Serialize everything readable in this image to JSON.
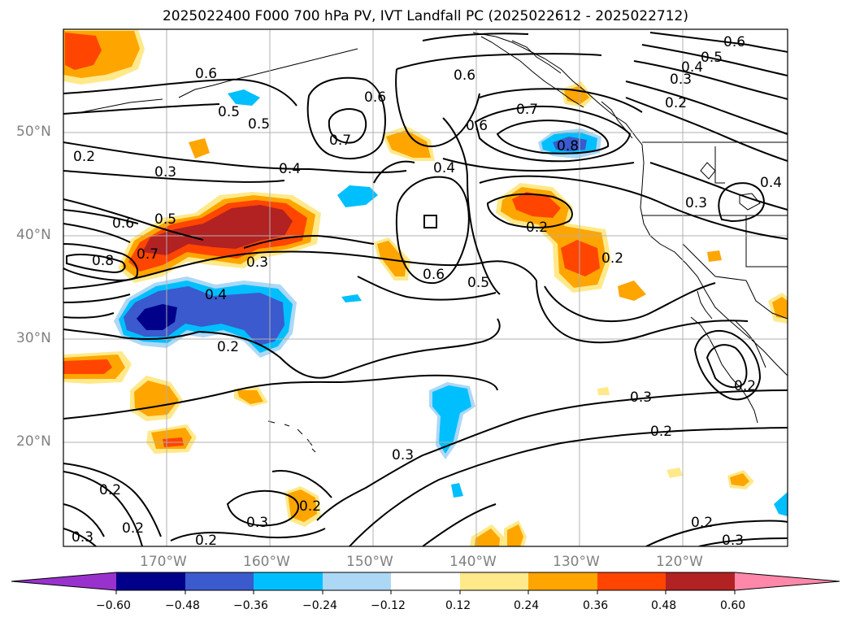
{
  "title": "2025022400 F000 700 hPa PV, IVT Landfall PC (2025022612 - 2025022712)",
  "lat_labels": [
    "50°N",
    "40°N",
    "30°N",
    "20°N"
  ],
  "lon_labels": [
    "170°W",
    "160°W",
    "150°W",
    "140°W",
    "130°W",
    "120°W"
  ],
  "colorbar": {
    "ticks": [
      "−0.60",
      "−0.48",
      "−0.36",
      "−0.24",
      "−0.12",
      "0.12",
      "0.24",
      "0.36",
      "0.48",
      "0.60"
    ],
    "colors": [
      "#9932cc",
      "#00008b",
      "#3a5acd",
      "#00bfff",
      "#add8f5",
      "#ffffff",
      "#ffe98a",
      "#ffa500",
      "#ff4500",
      "#b22222",
      "#ff88aa"
    ]
  },
  "contour_labels": [
    {
      "text": "0.6"
    },
    {
      "text": "0.5"
    },
    {
      "text": "0.5"
    },
    {
      "text": "0.2"
    },
    {
      "text": "0.3"
    },
    {
      "text": "0.4"
    },
    {
      "text": "0.7"
    },
    {
      "text": "0.6"
    },
    {
      "text": "0.6"
    },
    {
      "text": "0.7"
    },
    {
      "text": "0.6"
    },
    {
      "text": "0.4"
    },
    {
      "text": "0.8"
    },
    {
      "text": "0.6"
    },
    {
      "text": "0.5"
    },
    {
      "text": "0.4"
    },
    {
      "text": "0.3"
    },
    {
      "text": "0.2"
    },
    {
      "text": "0.4"
    },
    {
      "text": "0.3"
    },
    {
      "text": "0.6"
    },
    {
      "text": "0.5"
    },
    {
      "text": "0.8"
    },
    {
      "text": "0.7"
    },
    {
      "text": "0.3"
    },
    {
      "text": "0.4"
    },
    {
      "text": "0.2"
    },
    {
      "text": "0.6"
    },
    {
      "text": "0.5"
    },
    {
      "text": "0.2"
    },
    {
      "text": "0.2"
    },
    {
      "text": "0.2"
    },
    {
      "text": "0.3"
    },
    {
      "text": "0.2"
    },
    {
      "text": "0.3"
    },
    {
      "text": "0.2"
    },
    {
      "text": "0.2"
    },
    {
      "text": "0.3"
    },
    {
      "text": "0.2"
    },
    {
      "text": "0.3"
    },
    {
      "text": "0.2"
    },
    {
      "text": "0.2"
    },
    {
      "text": "0.3"
    }
  ]
}
